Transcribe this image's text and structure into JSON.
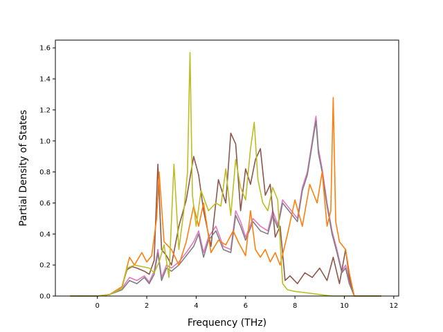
{
  "chart_data": {
    "type": "line",
    "xlabel": "Frequency (THz)",
    "ylabel": "Partial Density of States",
    "xlim": [
      -1.7,
      12.2
    ],
    "ylim": [
      0.0,
      1.65
    ],
    "xticks": [
      0,
      2,
      4,
      6,
      8,
      10,
      12
    ],
    "yticks": [
      0.0,
      0.2,
      0.4,
      0.6,
      0.8,
      1.0,
      1.2,
      1.4,
      1.6
    ],
    "grid": false,
    "legend": "none",
    "series": [
      {
        "color": "#e377c2",
        "x": [
          -1.1,
          0.0,
          0.5,
          1.0,
          1.3,
          1.6,
          1.9,
          2.1,
          2.3,
          2.45,
          2.6,
          2.8,
          3.0,
          3.3,
          3.6,
          3.9,
          4.1,
          4.3,
          4.5,
          4.8,
          5.1,
          5.4,
          5.6,
          5.8,
          6.0,
          6.3,
          6.6,
          6.9,
          7.1,
          7.3,
          7.5,
          7.8,
          8.1,
          8.3,
          8.5,
          8.7,
          8.85,
          8.95,
          9.1,
          9.3,
          9.5,
          9.7,
          9.9,
          10.05,
          10.2,
          10.4,
          11.5
        ],
        "y": [
          0.0,
          0.0,
          0.01,
          0.05,
          0.12,
          0.1,
          0.13,
          0.09,
          0.16,
          0.3,
          0.12,
          0.2,
          0.18,
          0.22,
          0.28,
          0.35,
          0.42,
          0.28,
          0.38,
          0.45,
          0.32,
          0.3,
          0.55,
          0.48,
          0.38,
          0.5,
          0.45,
          0.42,
          0.55,
          0.46,
          0.62,
          0.56,
          0.5,
          0.7,
          0.8,
          1.0,
          1.16,
          0.95,
          0.82,
          0.6,
          0.42,
          0.3,
          0.16,
          0.2,
          0.1,
          0.0,
          0.0
        ]
      },
      {
        "color": "#8c564b",
        "x": [
          -1.1,
          0.0,
          0.5,
          1.0,
          1.2,
          1.4,
          1.6,
          1.9,
          2.1,
          2.3,
          2.45,
          2.6,
          2.8,
          3.0,
          3.3,
          3.6,
          3.9,
          4.1,
          4.3,
          4.6,
          4.9,
          5.2,
          5.4,
          5.6,
          5.8,
          6.0,
          6.2,
          6.4,
          6.6,
          6.8,
          7.0,
          7.2,
          7.4,
          7.6,
          7.8,
          8.1,
          8.4,
          8.7,
          9.0,
          9.3,
          9.55,
          9.8,
          10.05,
          10.2,
          10.4,
          11.5
        ],
        "y": [
          0.0,
          0.0,
          0.01,
          0.06,
          0.17,
          0.19,
          0.18,
          0.16,
          0.14,
          0.23,
          0.85,
          0.3,
          0.26,
          0.2,
          0.45,
          0.62,
          0.9,
          0.78,
          0.55,
          0.32,
          0.75,
          0.6,
          1.05,
          0.98,
          0.55,
          0.82,
          0.72,
          0.88,
          0.95,
          0.65,
          0.72,
          0.38,
          0.45,
          0.1,
          0.13,
          0.08,
          0.15,
          0.12,
          0.18,
          0.1,
          0.25,
          0.08,
          0.3,
          0.12,
          0.0,
          0.0
        ]
      },
      {
        "color": "#7f7f7f",
        "x": [
          -1.1,
          0.0,
          0.5,
          1.0,
          1.3,
          1.6,
          1.9,
          2.1,
          2.3,
          2.45,
          2.6,
          2.8,
          3.0,
          3.3,
          3.6,
          3.9,
          4.1,
          4.3,
          4.5,
          4.8,
          5.1,
          5.4,
          5.6,
          5.8,
          6.0,
          6.3,
          6.6,
          6.9,
          7.1,
          7.3,
          7.5,
          7.8,
          8.1,
          8.3,
          8.5,
          8.7,
          8.85,
          8.95,
          9.1,
          9.3,
          9.5,
          9.7,
          9.9,
          10.05,
          10.2,
          10.4,
          11.5
        ],
        "y": [
          0.0,
          0.0,
          0.01,
          0.04,
          0.1,
          0.08,
          0.12,
          0.08,
          0.14,
          0.28,
          0.1,
          0.18,
          0.16,
          0.2,
          0.26,
          0.32,
          0.4,
          0.25,
          0.36,
          0.42,
          0.3,
          0.28,
          0.52,
          0.45,
          0.36,
          0.48,
          0.42,
          0.4,
          0.52,
          0.44,
          0.6,
          0.54,
          0.48,
          0.68,
          0.78,
          0.98,
          1.13,
          0.92,
          0.8,
          0.58,
          0.4,
          0.28,
          0.15,
          0.18,
          0.08,
          0.0,
          0.0
        ]
      },
      {
        "color": "#ff7f0e",
        "x": [
          -1.1,
          0.0,
          0.5,
          1.0,
          1.3,
          1.5,
          1.8,
          2.0,
          2.2,
          2.4,
          2.5,
          2.7,
          3.0,
          3.3,
          3.6,
          3.9,
          4.1,
          4.3,
          4.6,
          4.9,
          5.2,
          5.5,
          5.7,
          6.0,
          6.2,
          6.4,
          6.6,
          6.8,
          7.0,
          7.2,
          7.4,
          7.7,
          8.0,
          8.3,
          8.6,
          8.9,
          9.1,
          9.3,
          9.45,
          9.55,
          9.65,
          9.8,
          10.05,
          10.2,
          10.4,
          11.5
        ],
        "y": [
          0.0,
          0.0,
          0.01,
          0.06,
          0.25,
          0.2,
          0.28,
          0.22,
          0.26,
          0.5,
          0.8,
          0.35,
          0.3,
          0.2,
          0.35,
          0.58,
          0.45,
          0.6,
          0.28,
          0.36,
          0.33,
          0.42,
          0.35,
          0.26,
          0.55,
          0.3,
          0.25,
          0.3,
          0.22,
          0.28,
          0.2,
          0.4,
          0.62,
          0.45,
          0.72,
          0.6,
          0.8,
          0.45,
          0.55,
          1.28,
          0.48,
          0.35,
          0.3,
          0.15,
          0.0,
          0.0
        ]
      },
      {
        "color": "#bcbd22",
        "x": [
          -1.1,
          0.0,
          0.5,
          1.0,
          1.2,
          1.5,
          1.8,
          2.1,
          2.3,
          2.5,
          2.7,
          2.9,
          3.1,
          3.3,
          3.5,
          3.65,
          3.75,
          3.85,
          4.0,
          4.2,
          4.5,
          4.8,
          5.0,
          5.2,
          5.4,
          5.6,
          5.8,
          6.0,
          6.2,
          6.35,
          6.5,
          6.7,
          6.9,
          7.1,
          7.3,
          7.5,
          7.7,
          8.0,
          8.5,
          9.0,
          9.5,
          10.0,
          11.5
        ],
        "y": [
          0.0,
          0.0,
          0.01,
          0.05,
          0.18,
          0.2,
          0.19,
          0.18,
          0.15,
          0.22,
          0.33,
          0.12,
          0.85,
          0.3,
          0.55,
          0.8,
          1.57,
          0.65,
          0.45,
          0.68,
          0.55,
          0.6,
          0.58,
          0.82,
          0.52,
          0.88,
          0.7,
          0.62,
          0.95,
          1.12,
          0.75,
          0.6,
          0.55,
          0.7,
          0.62,
          0.08,
          0.04,
          0.03,
          0.02,
          0.01,
          0.0,
          0.0,
          0.0
        ]
      }
    ]
  }
}
